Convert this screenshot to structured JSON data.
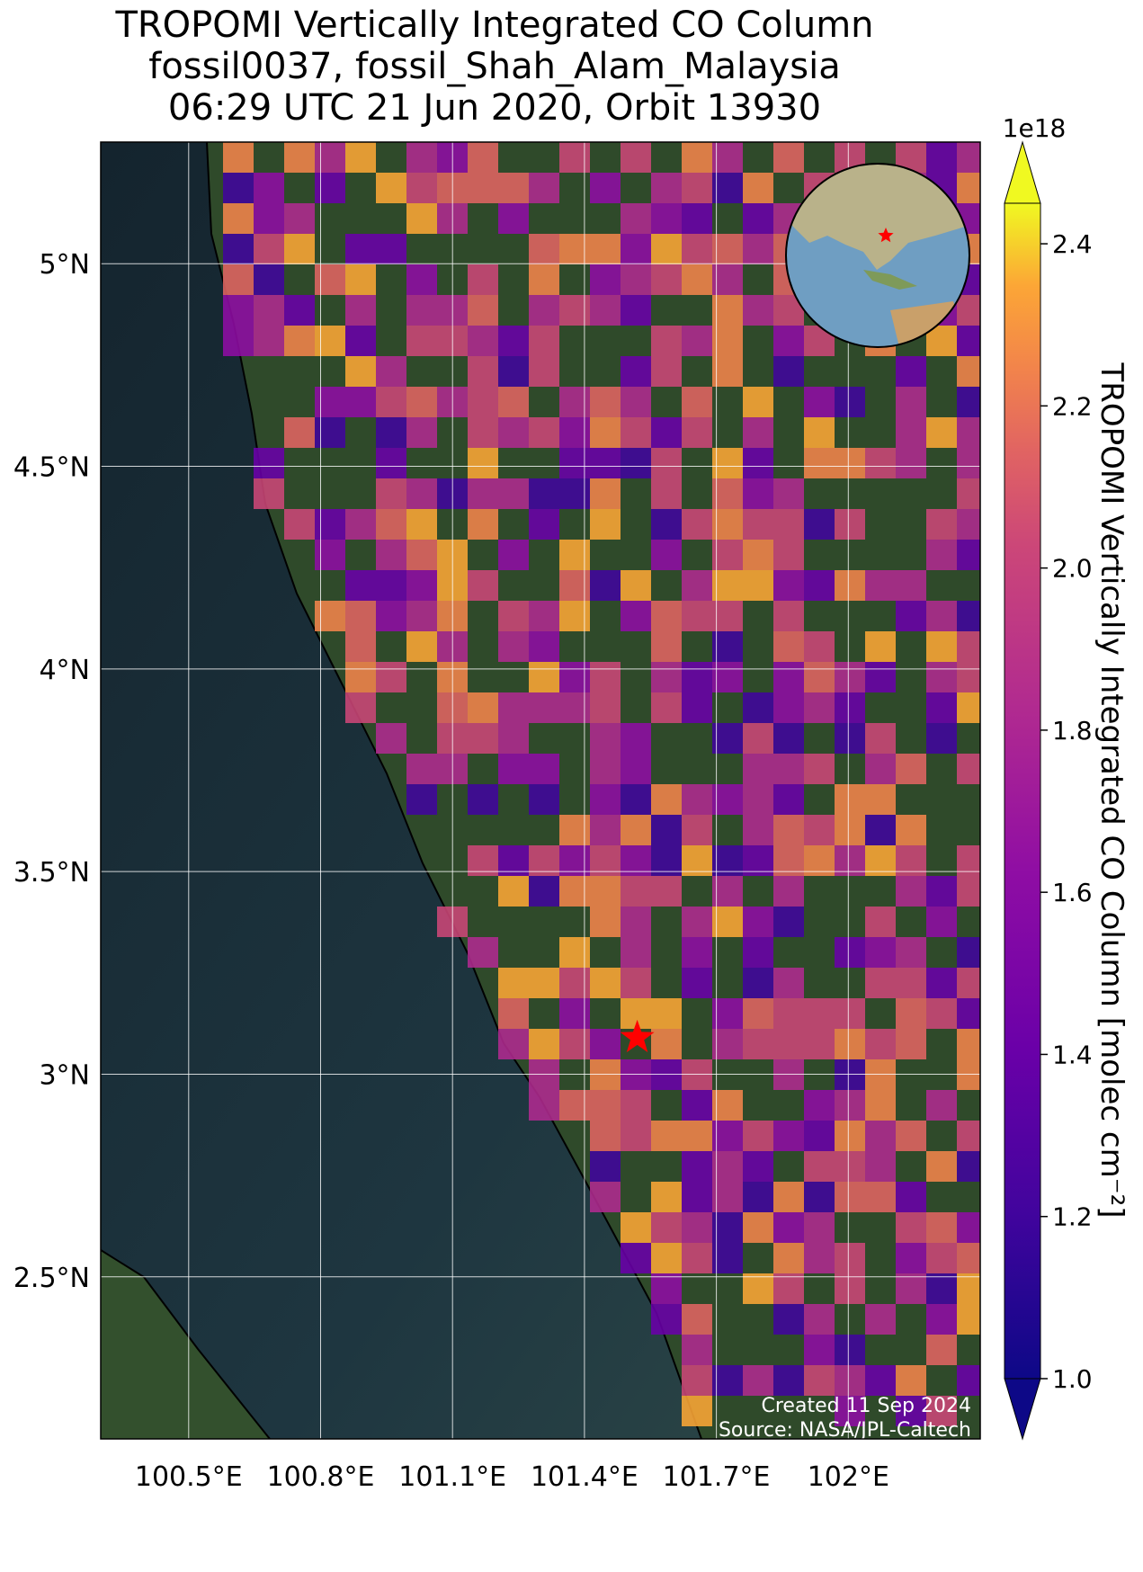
{
  "title": {
    "line1": "TROPOMI Vertically Integrated CO Column",
    "line2": "fossil0037, fossil_Shah_Alam_Malaysia",
    "line3": "06:29 UTC 21 Jun 2020, Orbit 13930"
  },
  "map": {
    "lon_range": [
      100.3,
      102.3
    ],
    "lat_range": [
      2.1,
      5.3
    ],
    "lat_ticks": [
      {
        "value": 5.0,
        "label": "5°N"
      },
      {
        "value": 4.5,
        "label": "4.5°N"
      },
      {
        "value": 4.0,
        "label": "4°N"
      },
      {
        "value": 3.5,
        "label": "3.5°N"
      },
      {
        "value": 3.0,
        "label": "3°N"
      },
      {
        "value": 2.5,
        "label": "2.5°N"
      }
    ],
    "lon_ticks": [
      {
        "value": 100.5,
        "label": "100.5°E"
      },
      {
        "value": 100.8,
        "label": "100.8°E"
      },
      {
        "value": 101.1,
        "label": "101.1°E"
      },
      {
        "value": 101.4,
        "label": "101.4°E"
      },
      {
        "value": 101.7,
        "label": "101.7°E"
      },
      {
        "value": 102.0,
        "label": "102°E"
      }
    ],
    "site_marker": {
      "name": "fossil_Shah_Alam_Malaysia",
      "lon": 101.52,
      "lat": 3.09,
      "symbol": "star",
      "color": "#ff0000"
    },
    "credit_line1": "Created 11 Sep 2024",
    "credit_line2": "Source: NASA/JPL-Caltech",
    "inset": "globe-with-location-star",
    "colors": {
      "sea": "#1b2a33",
      "land": "#2f4a2a",
      "grid": "#ffffff"
    }
  },
  "colorbar": {
    "label": "TROPOMI Vertically Integrated CO Column [molec cm$^{-2}$]",
    "label_display": "TROPOMI Vertically Integrated CO Column [molec cm⁻²]",
    "offset_text": "1e18",
    "range": [
      1.0,
      2.45
    ],
    "colormap": "plasma",
    "extend": "both",
    "ticks": [
      {
        "value": 1.0,
        "label": "1.0"
      },
      {
        "value": 1.2,
        "label": "1.2"
      },
      {
        "value": 1.4,
        "label": "1.4"
      },
      {
        "value": 1.6,
        "label": "1.6"
      },
      {
        "value": 1.8,
        "label": "1.8"
      },
      {
        "value": 2.0,
        "label": "2.0"
      },
      {
        "value": 2.2,
        "label": "2.2"
      },
      {
        "value": 2.4,
        "label": "2.4"
      }
    ]
  }
}
